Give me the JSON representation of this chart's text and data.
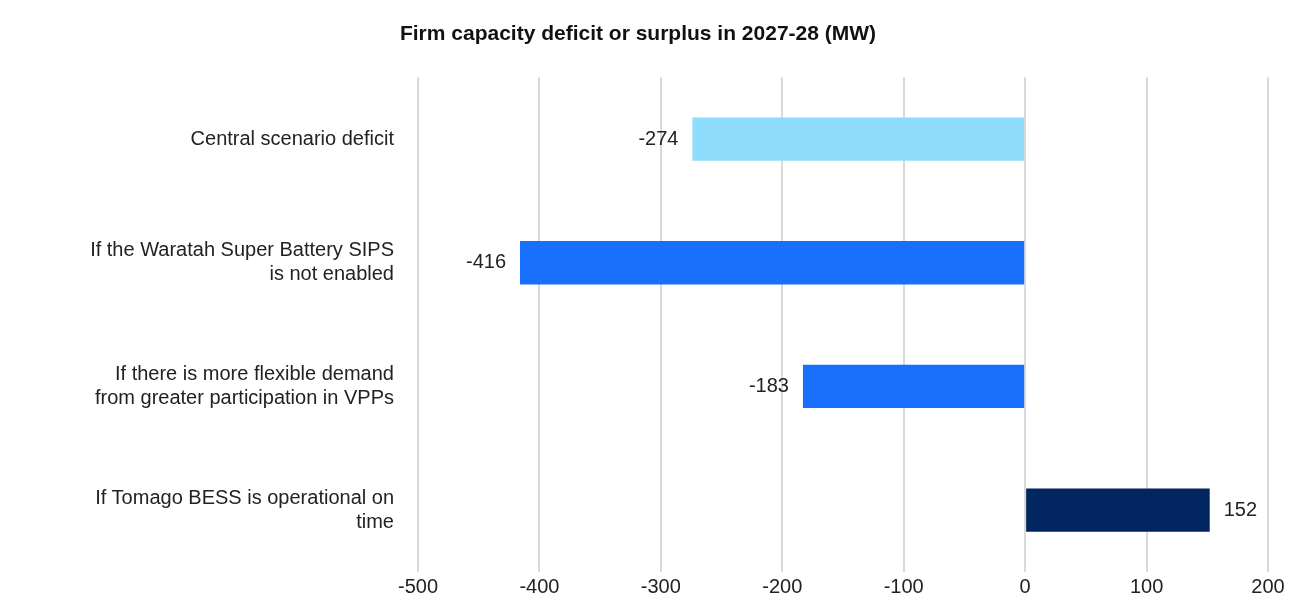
{
  "chart_data": {
    "type": "bar",
    "orientation": "horizontal",
    "title": "Firm capacity deficit or surplus in 2027-28 (MW)",
    "categories": [
      "Central scenario deficit",
      "If the Waratah Super Battery SIPS is not enabled",
      "If there is more flexible demand from greater participation in VPPs",
      "If Tomago BESS is operational on time"
    ],
    "values": [
      -274,
      -416,
      -183,
      152
    ],
    "colors": [
      "#8ddcfb",
      "#176ffb",
      "#176ffb",
      "#00255f"
    ],
    "xlim": [
      -500,
      200
    ],
    "xticks": [
      -500,
      -400,
      -300,
      -200,
      -100,
      0,
      100,
      200
    ],
    "grid": "x",
    "legend": false,
    "data_labels": true
  }
}
